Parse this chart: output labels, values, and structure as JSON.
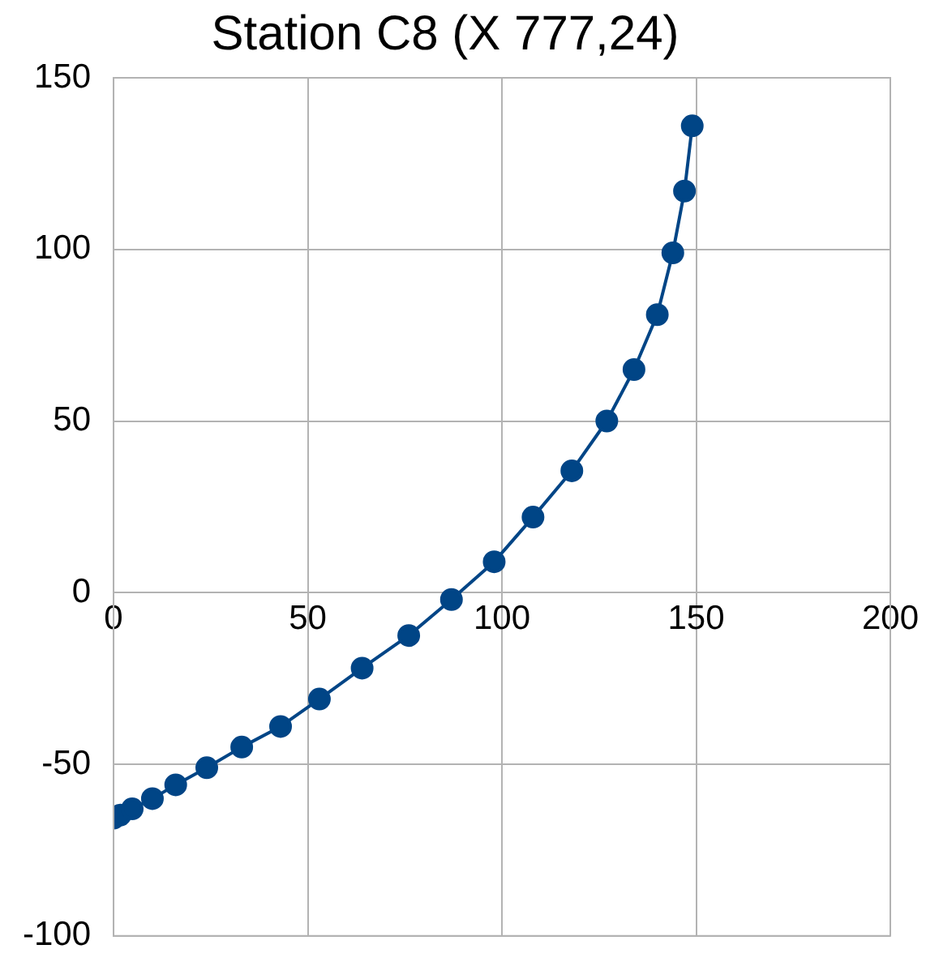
{
  "chart_data": {
    "type": "line",
    "title": "Station C8 (X 777,24)",
    "x": [
      0,
      1.7,
      4.8,
      10,
      16,
      24,
      33,
      43,
      53,
      64,
      76,
      87,
      98,
      108,
      118,
      127,
      134,
      140,
      144,
      147,
      149
    ],
    "series": [
      {
        "color": "#004586",
        "values": [
          -65.7,
          -64.8,
          -63,
          -60,
          -56,
          -51,
          -45,
          -39,
          -31,
          -22,
          -12.5,
          -2,
          9,
          22,
          35.5,
          50,
          65,
          81,
          99,
          117,
          136
        ]
      }
    ],
    "xlim": [
      0,
      200
    ],
    "xticks": [
      0,
      50,
      100,
      150,
      200
    ],
    "ylim": [
      -100,
      150
    ],
    "yticks": [
      -100,
      -50,
      0,
      50,
      100,
      150
    ],
    "grid": true,
    "marker": "circle",
    "line_style": "solid",
    "legend": false
  }
}
